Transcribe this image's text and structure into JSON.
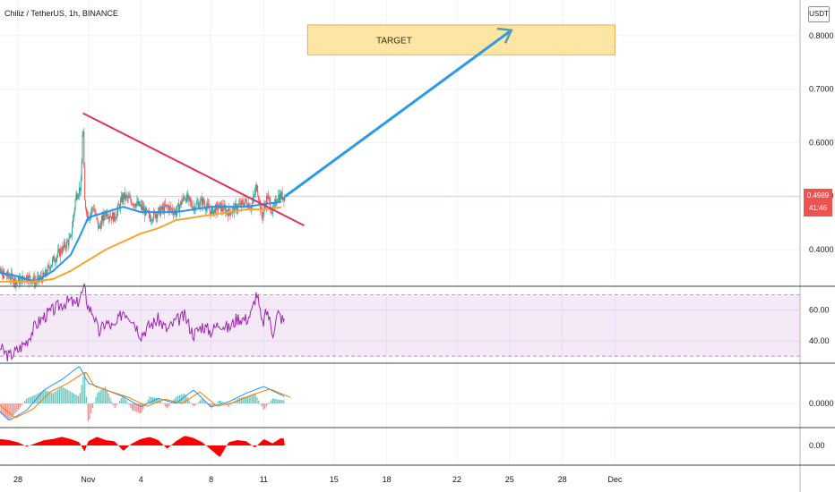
{
  "header": {
    "symbol_title": "Chiliz / TetherUS, 1h, BINANCE"
  },
  "currency": "USDT",
  "current_price": {
    "value": "0.4989",
    "countdown": "41:46"
  },
  "colors": {
    "up": "#26a69a",
    "down": "#ef5350",
    "trendline": "#e0325e",
    "arrow": "#2b9be4",
    "ema_fast": "#2196f3",
    "ema_slow": "#f7a531",
    "rsi": "#9c27b0",
    "target_fill": "#fde49a",
    "target_border": "#f2a33a",
    "macd_signal": "#f57c00",
    "volume_red": "#ff0000"
  },
  "chart_data": [
    {
      "type": "line",
      "panel": "price",
      "y_axis": {
        "ticks": [
          "0.4000",
          "0.5000",
          "0.6000",
          "0.7000",
          "0.8000"
        ],
        "range": [
          0.34,
          0.86
        ]
      },
      "x_axis": {
        "ticks": [
          "28",
          "Nov",
          "4",
          "8",
          "11",
          "15",
          "18",
          "22",
          "25",
          "28",
          "Dec"
        ],
        "tick_day_index": [
          0,
          4,
          7,
          11,
          14,
          18,
          21,
          25,
          28,
          31,
          34
        ]
      },
      "series": [
        {
          "name": "price",
          "x_day": [
            -1.5,
            -0.5,
            0,
            0.5,
            1,
            1.5,
            2,
            2.5,
            3,
            3.3,
            3.6,
            3.7,
            3.8,
            4,
            4.3,
            4.6,
            5,
            5.5,
            6,
            6.5,
            7,
            7.5,
            8,
            8.5,
            9,
            9.5,
            10,
            10.5,
            11,
            11.5,
            12,
            12.5,
            13,
            13.3,
            13.6,
            13.9,
            14.2,
            14.5,
            14.8,
            15.2
          ],
          "y": [
            0.36,
            0.35,
            0.34,
            0.35,
            0.34,
            0.35,
            0.38,
            0.4,
            0.42,
            0.5,
            0.52,
            0.65,
            0.49,
            0.46,
            0.48,
            0.44,
            0.47,
            0.46,
            0.5,
            0.49,
            0.48,
            0.46,
            0.47,
            0.48,
            0.47,
            0.5,
            0.48,
            0.49,
            0.47,
            0.48,
            0.47,
            0.48,
            0.49,
            0.48,
            0.52,
            0.46,
            0.5,
            0.47,
            0.5,
            0.5
          ]
        },
        {
          "name": "ema_fast",
          "x_day": [
            -1.5,
            0,
            1,
            2,
            3,
            3.6,
            4,
            5,
            6,
            7,
            8,
            9,
            10,
            11,
            12,
            13,
            14,
            15.2
          ],
          "y": [
            0.36,
            0.35,
            0.34,
            0.36,
            0.39,
            0.43,
            0.46,
            0.47,
            0.48,
            0.47,
            0.47,
            0.47,
            0.475,
            0.48,
            0.48,
            0.48,
            0.485,
            0.49
          ]
        },
        {
          "name": "ema_slow",
          "x_day": [
            -1.5,
            0,
            1,
            2,
            3,
            4,
            5,
            6,
            7,
            8,
            9,
            10,
            11,
            12,
            13,
            14,
            15.2
          ],
          "y": [
            0.34,
            0.34,
            0.34,
            0.345,
            0.36,
            0.38,
            0.4,
            0.415,
            0.43,
            0.44,
            0.455,
            0.46,
            0.465,
            0.47,
            0.475,
            0.475,
            0.48
          ]
        }
      ],
      "annotations": {
        "target_label": "TARGET",
        "target_zone": {
          "from_day": 16.5,
          "to_day": 34,
          "top": 0.82,
          "bottom": 0.764
        },
        "trendline": {
          "from": [
            3.7,
            0.655
          ],
          "to": [
            16.3,
            0.445
          ]
        },
        "arrow": {
          "from": [
            15.2,
            0.499
          ],
          "to": [
            28.1,
            0.81
          ]
        }
      }
    },
    {
      "type": "line",
      "panel": "rsi",
      "y_axis": {
        "ticks": [
          "40.00",
          "60.00"
        ],
        "range": [
          20,
          80
        ],
        "band": [
          30,
          70
        ]
      },
      "series": [
        {
          "name": "rsi",
          "x_day": [
            -1.5,
            -1,
            -0.5,
            0,
            0.5,
            1,
            1.5,
            2,
            2.5,
            3,
            3.3,
            3.6,
            3.8,
            4,
            4.3,
            4.6,
            5,
            5.5,
            6,
            6.5,
            7,
            7.5,
            8,
            8.5,
            9,
            9.5,
            10,
            10.5,
            11,
            11.5,
            12,
            12.5,
            13,
            13.3,
            13.6,
            13.9,
            14.2,
            14.5,
            14.8,
            15.2
          ],
          "y": [
            45,
            35,
            30,
            34,
            40,
            50,
            56,
            60,
            64,
            66,
            63,
            70,
            74,
            62,
            58,
            45,
            52,
            48,
            60,
            55,
            44,
            50,
            54,
            47,
            53,
            56,
            44,
            50,
            46,
            52,
            48,
            55,
            54,
            58,
            72,
            50,
            60,
            45,
            58,
            52
          ]
        }
      ]
    },
    {
      "type": "bar",
      "panel": "macd",
      "y_axis": {
        "ticks": [
          "0.0000"
        ]
      },
      "series": [
        {
          "name": "histogram",
          "x_day": [
            -1.5,
            -1,
            -0.5,
            0,
            0.5,
            1,
            1.5,
            2,
            2.5,
            3,
            3.5,
            3.8,
            4,
            4.5,
            5,
            5.5,
            6,
            6.5,
            7,
            7.5,
            8,
            8.5,
            9,
            9.5,
            10,
            10.5,
            11,
            11.5,
            12,
            12.5,
            13,
            13.5,
            14,
            14.5,
            15
          ],
          "values": [
            0.002,
            -0.006,
            -0.01,
            -0.004,
            0.003,
            0.005,
            0.008,
            0.006,
            0.01,
            0.007,
            0.004,
            0.02,
            -0.012,
            0.006,
            0.01,
            -0.003,
            0.005,
            -0.004,
            -0.006,
            0.004,
            0.003,
            -0.003,
            0.004,
            0.006,
            -0.002,
            0.003,
            -0.003,
            0.002,
            -0.002,
            0.003,
            0.004,
            0.006,
            -0.004,
            0.003,
            0.002
          ]
        },
        {
          "name": "macd",
          "x_day": [
            -1.5,
            -0.5,
            0.5,
            1.5,
            2.5,
            3.5,
            4,
            5,
            6,
            7,
            8,
            9,
            10,
            11,
            12,
            13,
            14,
            15.2
          ],
          "values": [
            0,
            -0.01,
            -0.004,
            0.008,
            0.014,
            0.022,
            0.012,
            0.008,
            0.004,
            -0.002,
            0.003,
            0.0,
            0.008,
            -0.002,
            0.001,
            0.006,
            0.01,
            0.004
          ]
        }
      ]
    },
    {
      "type": "area",
      "panel": "volume_indicator",
      "y_axis": {
        "ticks": [
          "0.00"
        ]
      },
      "series": [
        {
          "name": "oscillator",
          "x_day": [
            -1.5,
            -1,
            -0.5,
            0,
            0.5,
            1,
            1.5,
            2,
            2.5,
            3,
            3.5,
            3.8,
            4,
            4.5,
            5,
            5.5,
            6,
            6.5,
            7,
            7.5,
            8,
            8.5,
            9,
            9.5,
            10,
            10.5,
            11,
            11.5,
            12,
            12.5,
            13,
            13.5,
            14,
            14.5,
            15,
            15.2
          ],
          "values": [
            0.4,
            0.6,
            0.5,
            0.3,
            -0.1,
            0.2,
            0.5,
            0.6,
            0.8,
            0.6,
            0.3,
            -0.6,
            0.4,
            0.8,
            0.5,
            0.4,
            -0.5,
            0.2,
            0.6,
            0.8,
            0.5,
            -0.3,
            0.4,
            0.9,
            0.7,
            0.3,
            -0.4,
            -1.1,
            0.3,
            0.5,
            0.4,
            -0.2,
            0.6,
            0.2,
            0.7,
            0.6
          ]
        }
      ]
    }
  ]
}
